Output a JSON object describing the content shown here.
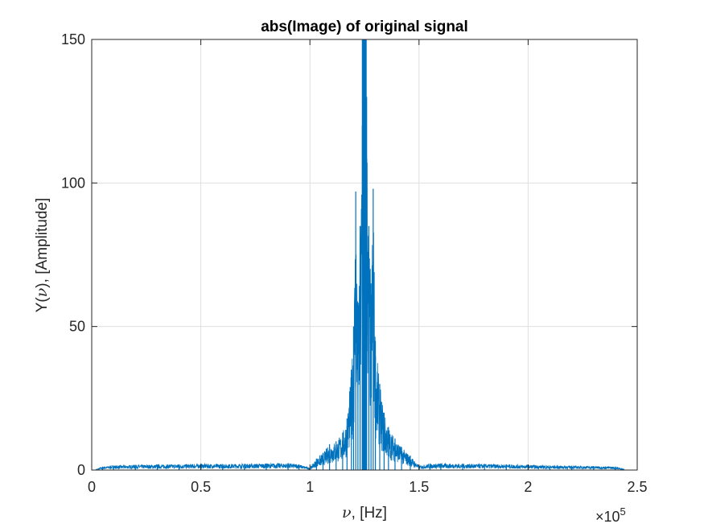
{
  "chart_data": {
    "type": "line",
    "title": "abs(Image) of original signal",
    "xlabel": {
      "symbol": "ν",
      "rest": ", [Hz]"
    },
    "ylabel": {
      "before": "Y(",
      "symbol": "ν",
      "after": "), [Amplitude]"
    },
    "x_exponent": {
      "base": "×10",
      "power": "5"
    },
    "xlim": [
      0,
      250000
    ],
    "ylim": [
      0,
      150
    ],
    "xticks": [
      0,
      50000,
      100000,
      150000,
      200000,
      250000
    ],
    "xtick_labels": [
      "0",
      "0.5",
      "1",
      "1.5",
      "2",
      "2.5"
    ],
    "yticks": [
      0,
      50,
      100,
      150
    ],
    "ytick_labels": [
      "0",
      "50",
      "100",
      "150"
    ],
    "grid": true,
    "line_color": "#0072BD",
    "series": [
      {
        "x": [
          2000,
          5000,
          10000,
          20000,
          30000,
          40000,
          50000,
          60000,
          70000,
          80000,
          90000,
          95000,
          100000,
          103000,
          106000,
          109000,
          112000,
          115000,
          117000,
          119000,
          120000,
          121000,
          122000,
          123000,
          124000,
          124500,
          125000,
          125500,
          126000,
          127000,
          128000,
          129000,
          130000,
          132000,
          134000,
          136000,
          139000,
          142000,
          146000,
          150000,
          155000,
          160000,
          170000,
          180000,
          190000,
          200000,
          210000,
          220000,
          230000,
          240000,
          243000,
          244000
        ],
        "y": [
          0.2,
          1.2,
          1.6,
          1.8,
          1.9,
          2.0,
          2.2,
          2.1,
          2.2,
          2.3,
          2.4,
          2.0,
          0.8,
          4,
          6,
          9,
          10,
          13,
          18,
          35,
          50,
          97,
          55,
          85,
          120,
          150,
          150,
          150,
          130,
          85,
          65,
          98,
          45,
          30,
          20,
          15,
          11,
          8,
          5,
          1.5,
          2.2,
          2.3,
          2.2,
          2.1,
          2.0,
          1.8,
          1.6,
          1.5,
          1.4,
          1.2,
          0.6,
          0.2
        ]
      }
    ]
  }
}
